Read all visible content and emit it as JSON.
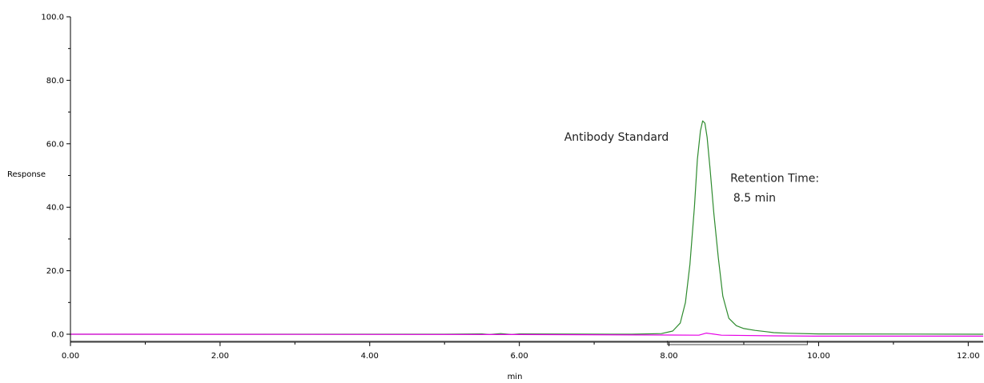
{
  "chart_data": {
    "type": "line",
    "title": "",
    "xlabel": "min",
    "ylabel": "Response",
    "xlim": [
      0,
      12.2
    ],
    "ylim": [
      -2.5,
      100
    ],
    "x_ticks": [
      0,
      2,
      4,
      6,
      8,
      10,
      12
    ],
    "x_tick_labels": [
      "0.00",
      "2.00",
      "4.00",
      "6.00",
      "8.00",
      "10.00",
      "12.00"
    ],
    "y_ticks": [
      0,
      20,
      40,
      60,
      80,
      100
    ],
    "y_tick_labels": [
      "0.0",
      "20.0",
      "40.0",
      "60.0",
      "80.0",
      "100.0"
    ],
    "grid": false,
    "series": [
      {
        "color": "#2e8b2e",
        "x": [
          0.0,
          5.0,
          5.5,
          5.6,
          5.75,
          5.9,
          6.0,
          7.5,
          7.9,
          8.05,
          8.15,
          8.22,
          8.28,
          8.34,
          8.38,
          8.42,
          8.45,
          8.48,
          8.51,
          8.55,
          8.6,
          8.66,
          8.72,
          8.8,
          8.9,
          9.0,
          9.15,
          9.3,
          9.4,
          9.6,
          10.0,
          12.2
        ],
        "y": [
          0.0,
          0.0,
          0.1,
          -0.1,
          0.2,
          -0.1,
          0.1,
          0.0,
          0.2,
          1.0,
          3.5,
          10.0,
          22.0,
          40.0,
          55.0,
          64.0,
          67.2,
          66.5,
          62.0,
          52.0,
          38.0,
          24.0,
          12.0,
          5.0,
          2.7,
          1.8,
          1.2,
          0.8,
          0.5,
          0.3,
          0.1,
          0.0
        ]
      },
      {
        "color": "#e600e6",
        "x": [
          0.0,
          6.0,
          8.0,
          8.4,
          8.5,
          8.7,
          9.4,
          10.0,
          12.2
        ],
        "y": [
          0.0,
          -0.1,
          -0.25,
          -0.3,
          0.35,
          -0.3,
          -0.5,
          -0.6,
          -0.6
        ]
      },
      {
        "color": "#6a6a6a",
        "x": [
          0.0,
          12.2
        ],
        "y": [
          -2.2,
          -2.2
        ]
      }
    ],
    "bracket": {
      "x_start": 7.98,
      "x_end": 9.85,
      "color": "#444444"
    },
    "annotations": [
      {
        "text": "Antibody Standard",
        "x": 6.6,
        "y": 61.0
      },
      {
        "text": "Retention Time:",
        "x": 8.82,
        "y": 48.0
      },
      {
        "text": "8.5 min",
        "x": 8.86,
        "y": 41.8
      }
    ]
  }
}
